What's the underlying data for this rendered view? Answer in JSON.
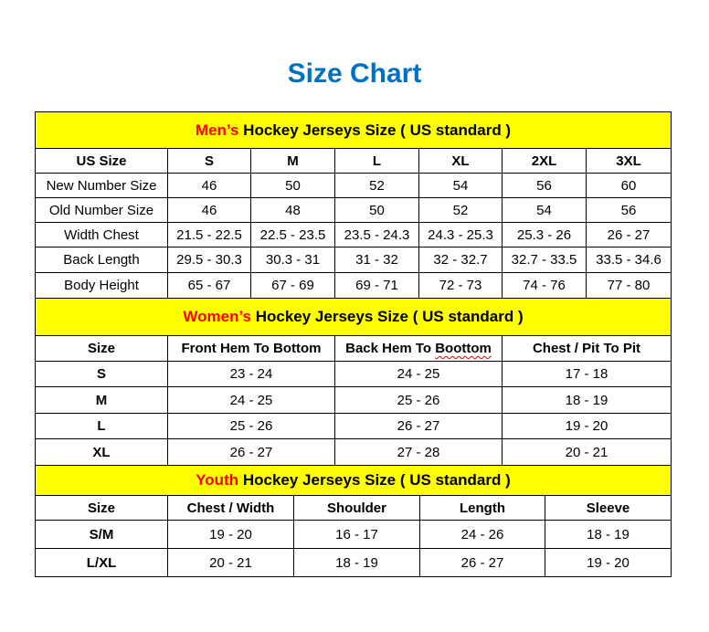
{
  "title": "Size Chart",
  "colors": {
    "title": "#0070C0",
    "banner_bg": "#FFFF00",
    "banner_highlight": "#FF0000"
  },
  "men": {
    "banner_prefix": "Men’s",
    "banner_rest": " Hockey Jerseys Size ( US standard )",
    "headers": [
      "US Size",
      "S",
      "M",
      "L",
      "XL",
      "2XL",
      "3XL"
    ],
    "rows": [
      [
        "New Number Size",
        "46",
        "50",
        "52",
        "54",
        "56",
        "60"
      ],
      [
        "Old Number Size",
        "46",
        "48",
        "50",
        "52",
        "54",
        "56"
      ],
      [
        "Width Chest",
        "21.5 - 22.5",
        "22.5 - 23.5",
        "23.5 - 24.3",
        "24.3 - 25.3",
        "25.3 - 26",
        "26 - 27"
      ],
      [
        "Back Length",
        "29.5 - 30.3",
        "30.3 - 31",
        "31 - 32",
        "32 - 32.7",
        "32.7 - 33.5",
        "33.5 - 34.6"
      ],
      [
        "Body Height",
        "65 - 67",
        "67 - 69",
        "69 - 71",
        "72 - 73",
        "74 - 76",
        "77 - 80"
      ]
    ]
  },
  "women": {
    "banner_prefix": "Women’s",
    "banner_rest": " Hockey Jerseys Size ( US standard )",
    "headers": [
      "Size",
      "Front Hem To Bottom",
      "Back Hem To ",
      "Chest / Pit To Pit"
    ],
    "header_misspelled_word": "Boottom",
    "rows": [
      [
        "S",
        "23 - 24",
        "24 - 25",
        "17 - 18"
      ],
      [
        "M",
        "24 - 25",
        "25 - 26",
        "18 - 19"
      ],
      [
        "L",
        "25 - 26",
        "26 - 27",
        "19 - 20"
      ],
      [
        "XL",
        "26 - 27",
        "27 - 28",
        "20 - 21"
      ]
    ]
  },
  "youth": {
    "banner_prefix": "Youth",
    "banner_rest": " Hockey Jerseys Size ( US standard )",
    "headers": [
      "Size",
      "Chest / Width",
      "Shoulder",
      "Length",
      "Sleeve"
    ],
    "rows": [
      [
        "S/M",
        "19 - 20",
        "16 - 17",
        "24 - 26",
        "18 - 19"
      ],
      [
        "L/XL",
        "20 - 21",
        "18 - 19",
        "26 - 27",
        "19 - 20"
      ]
    ]
  }
}
